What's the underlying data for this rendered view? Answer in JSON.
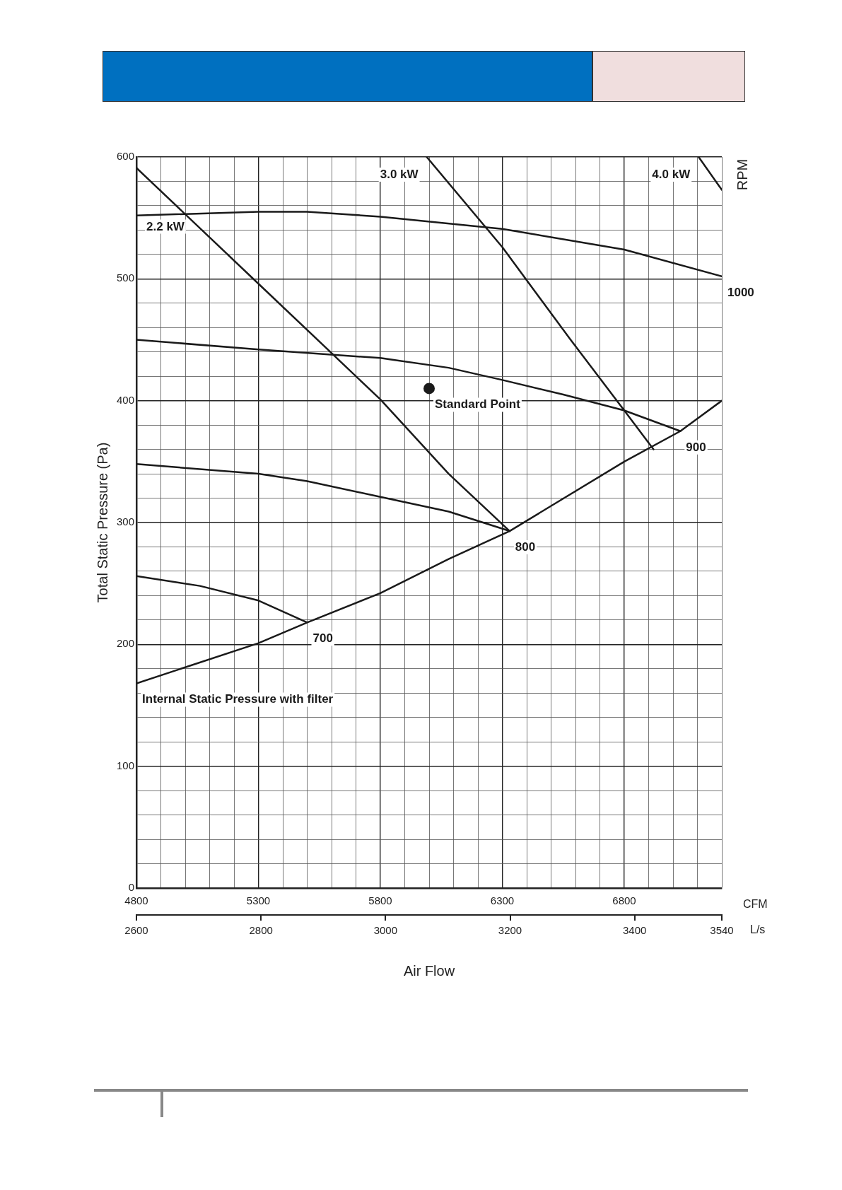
{
  "chart_data": {
    "type": "line",
    "xlabel": "Air Flow",
    "ylabel": "Total Static Pressure (Pa)",
    "x2label": "L/s",
    "annotations": [
      "CFM",
      "RPM"
    ],
    "xlim": [
      4800,
      7200
    ],
    "xticks": [
      4800,
      {
        "value": 4900,
        "label": null
      },
      {
        "value": 5000,
        "label": null
      },
      {
        "value": 5100,
        "label": null
      },
      {
        "value": 5200,
        "label": null
      },
      5300,
      {
        "value": 5400,
        "label": null
      },
      {
        "value": 5500,
        "label": null
      },
      {
        "value": 5600,
        "label": null
      },
      {
        "value": 5700,
        "label": null
      },
      5800,
      {
        "value": 5900,
        "label": null
      },
      {
        "value": 6000,
        "label": null
      },
      {
        "value": 6100,
        "label": null
      },
      {
        "value": 6200,
        "label": null
      },
      6300,
      {
        "value": 6400,
        "label": null
      },
      {
        "value": 6500,
        "label": null
      },
      {
        "value": 6600,
        "label": null
      },
      {
        "value": 6700,
        "label": null
      },
      6800,
      {
        "value": 6900,
        "label": null
      },
      {
        "value": 7000,
        "label": null
      },
      {
        "value": 7100,
        "label": null
      },
      {
        "value": 7200,
        "label": null
      }
    ],
    "x2lim": [
      2600,
      3540
    ],
    "x2ticks": [
      2600,
      2800,
      3000,
      3200,
      3400,
      3540
    ],
    "ylim": [
      0,
      600
    ],
    "yticks": [
      0,
      {
        "value": 20,
        "label": null
      },
      {
        "value": 40,
        "label": null
      },
      {
        "value": 60,
        "label": null
      },
      {
        "value": 80,
        "label": null
      },
      100,
      {
        "value": 120,
        "label": null
      },
      {
        "value": 140,
        "label": null
      },
      {
        "value": 160,
        "label": null
      },
      {
        "value": 180,
        "label": null
      },
      200,
      {
        "value": 220,
        "label": null
      },
      {
        "value": 240,
        "label": null
      },
      {
        "value": 260,
        "label": null
      },
      {
        "value": 280,
        "label": null
      },
      300,
      {
        "value": 320,
        "label": null
      },
      {
        "value": 340,
        "label": null
      },
      {
        "value": 360,
        "label": null
      },
      {
        "value": 380,
        "label": null
      },
      400,
      {
        "value": 420,
        "label": null
      },
      {
        "value": 440,
        "label": null
      },
      {
        "value": 460,
        "label": null
      },
      {
        "value": 480,
        "label": null
      },
      500,
      {
        "value": 520,
        "label": null
      },
      {
        "value": 540,
        "label": null
      },
      {
        "value": 560,
        "label": null
      },
      {
        "value": 580,
        "label": null
      },
      600
    ],
    "grid": true,
    "legend": false,
    "series": [
      {
        "name": "1000",
        "color": "#1a1a1a",
        "x": [
          4800,
          5300,
          5500,
          5800,
          6300,
          6800,
          7200
        ],
        "values": [
          552,
          555,
          555,
          551,
          541,
          524,
          502
        ]
      },
      {
        "name": "900",
        "color": "#1a1a1a",
        "x": [
          4800,
          5300,
          5800,
          6080,
          6300,
          6550,
          6800,
          7030
        ],
        "values": [
          450,
          442,
          435,
          427,
          417,
          405,
          392,
          375
        ]
      },
      {
        "name": "800",
        "color": "#1a1a1a",
        "x": [
          4800,
          5300,
          5500,
          5800,
          6080,
          6330
        ],
        "values": [
          348,
          340,
          334,
          321,
          309,
          293
        ]
      },
      {
        "name": "700",
        "color": "#1a1a1a",
        "x": [
          4800,
          5060,
          5300,
          5500
        ],
        "values": [
          256,
          248,
          236,
          218
        ]
      },
      {
        "name": "Internal Static Pressure with filter",
        "color": "#1a1a1a",
        "x": [
          7200,
          7030,
          6800,
          6330,
          6080,
          5800,
          5500,
          5300,
          4800
        ],
        "values": [
          400,
          375,
          350,
          293,
          270,
          242,
          218,
          201,
          168
        ]
      },
      {
        "name": "2.2 kW",
        "color": "#1a1a1a",
        "x": [
          6330,
          6080,
          5800,
          5600,
          5300,
          4800
        ],
        "values": [
          293,
          340,
          401,
          439,
          496,
          591
        ]
      },
      {
        "name": "3.0 kW",
        "color": "#1a1a1a",
        "x": [
          6920,
          6800,
          6580,
          6300,
          5990
        ],
        "values": [
          360,
          392,
          450,
          526,
          600
        ]
      },
      {
        "name": "4.0 kW",
        "color": "#1a1a1a",
        "x": [
          7200,
          7105
        ],
        "values": [
          573,
          600
        ]
      },
      {
        "name": "Standard Point",
        "type": "scatter",
        "marker": "circle",
        "color": "#1a1a1a",
        "x": [
          6000
        ],
        "values": [
          410
        ]
      }
    ]
  }
}
